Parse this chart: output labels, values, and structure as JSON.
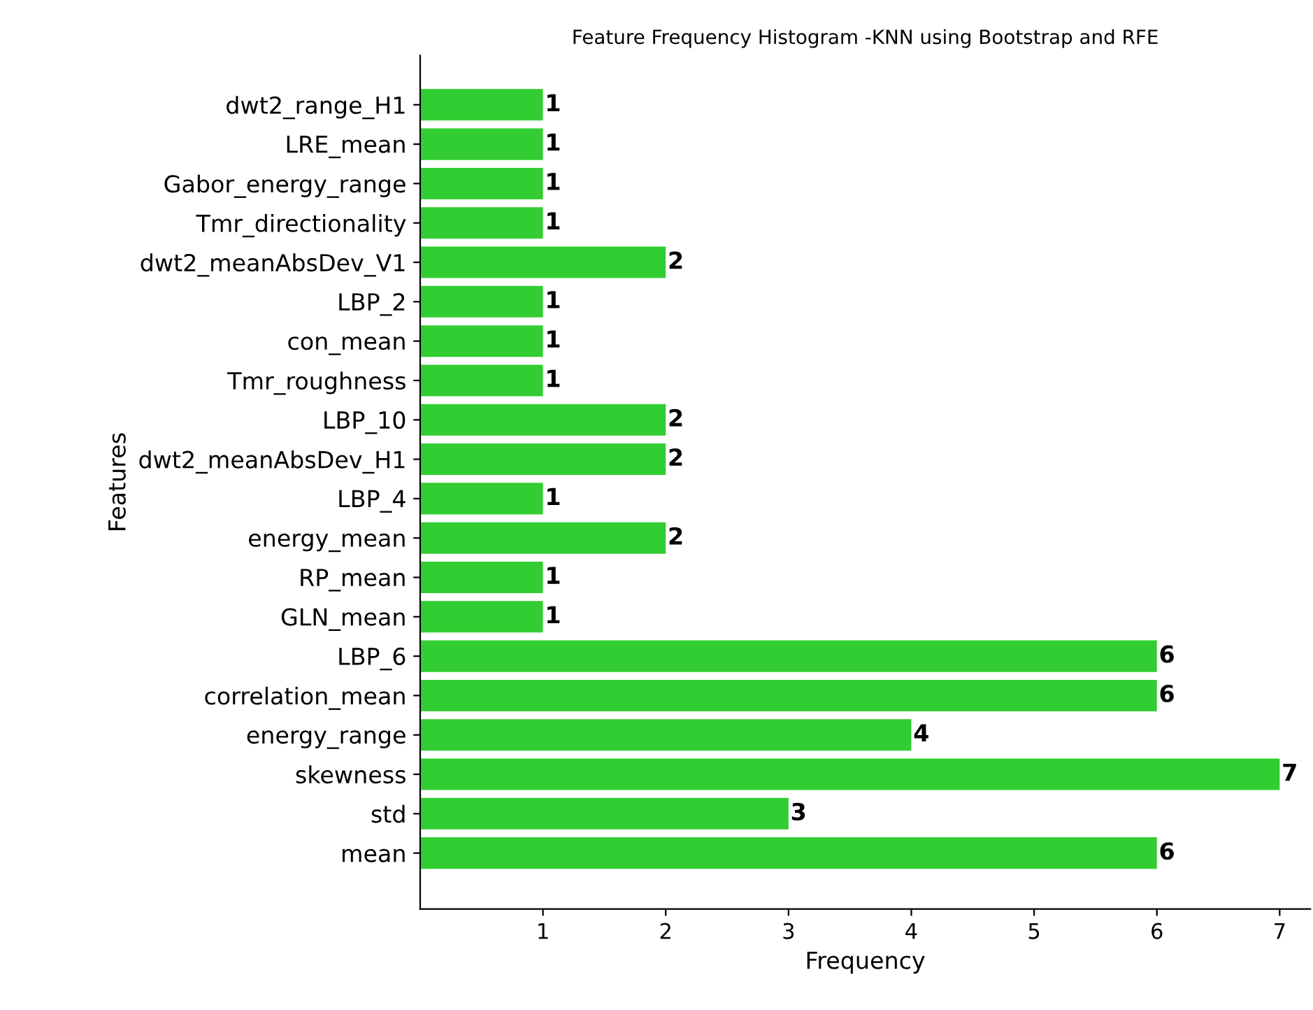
{
  "chart_data": {
    "type": "bar",
    "orientation": "horizontal",
    "title": "Feature Frequency Histogram -KNN using Bootstrap and RFE",
    "xlabel": "Frequency",
    "ylabel": "Features",
    "categories": [
      "dwt2_range_H1",
      "LRE_mean",
      "Gabor_energy_range",
      "Tmr_directionality",
      "dwt2_meanAbsDev_V1",
      "LBP_2",
      "con_mean",
      "Tmr_roughness",
      "LBP_10",
      "dwt2_meanAbsDev_H1",
      "LBP_4",
      "energy_mean",
      "RP_mean",
      "GLN_mean",
      "LBP_6",
      "correlation_mean",
      "energy_range",
      "skewness",
      "std",
      "mean"
    ],
    "values": [
      1,
      1,
      1,
      1,
      2,
      1,
      1,
      1,
      2,
      2,
      1,
      2,
      1,
      1,
      6,
      6,
      4,
      7,
      3,
      6
    ],
    "color": "#32cd32",
    "xlim": [
      0,
      7.25
    ],
    "xticks": [
      1,
      2,
      3,
      4,
      5,
      6,
      7
    ],
    "data_labels": true,
    "grid": false
  }
}
